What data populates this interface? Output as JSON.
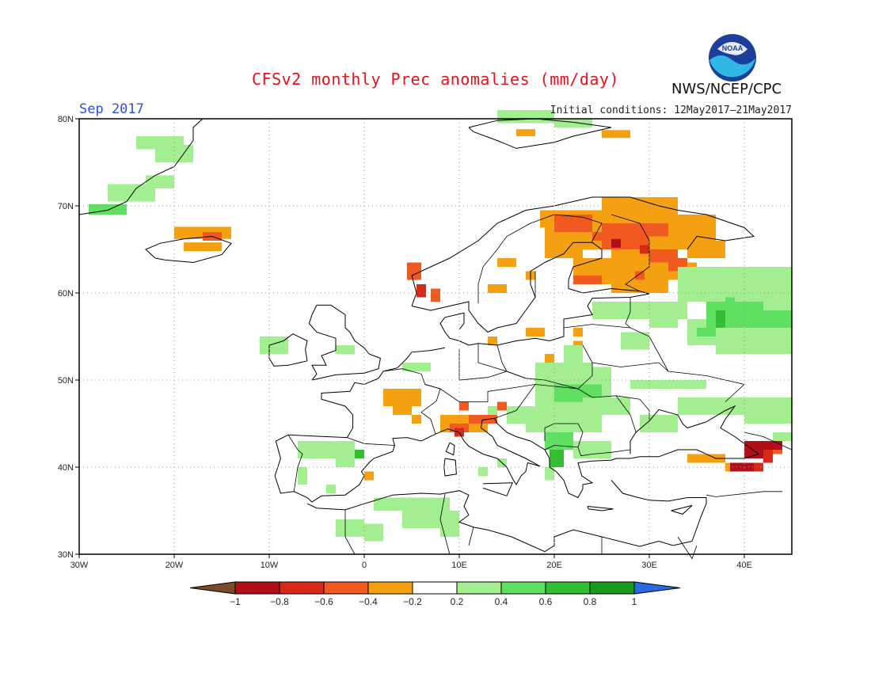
{
  "title": "CFSv2 monthly Prec anomalies (mm/day)",
  "valid_month": "Sep 2017",
  "initial_conditions": "Initial conditions: 12May2017–21May2017",
  "organization": "NWS/NCEP/CPC",
  "logo_text": "NOAA",
  "map": {
    "lon_range": [
      -30,
      45
    ],
    "lat_range": [
      30,
      80
    ],
    "lat_ticks": [
      "80N",
      "70N",
      "60N",
      "50N",
      "40N",
      "30N"
    ],
    "lon_ticks": [
      "30W",
      "20W",
      "10W",
      "0",
      "10E",
      "20E",
      "30E",
      "40E"
    ],
    "grid": "dotted"
  },
  "colorbar": {
    "labels": [
      "−1",
      "−0.8",
      "−0.6",
      "−0.4",
      "−0.2",
      "0.2",
      "0.4",
      "0.6",
      "0.8",
      "1"
    ],
    "colors": [
      "#7a4a2a",
      "#b01018",
      "#d82818",
      "#f05a20",
      "#f5a010",
      "#ffffff",
      "#a2ee90",
      "#5fe060",
      "#32c032",
      "#1a9a1a",
      "#2a6ae0"
    ]
  },
  "anomaly_colors": {
    "neg_02_04": "#f5a010",
    "neg_04_06": "#f05a20",
    "neg_06_08": "#d82818",
    "neg_08_1": "#b01018",
    "pos_02_04": "#a2ee90",
    "pos_04_06": "#5fe060",
    "pos_06_08": "#32c032"
  }
}
